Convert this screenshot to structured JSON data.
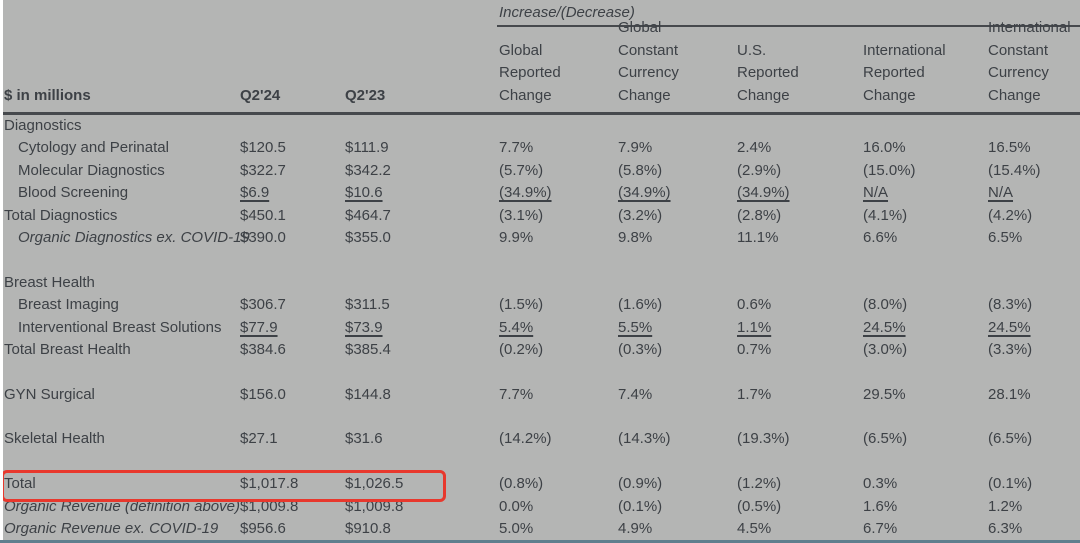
{
  "colors": {
    "background": "#b4b5b4",
    "text": "#3d4146",
    "rule_line": "#46494d",
    "highlight_box": "#e8382d",
    "bottom_bar": "#5f7f8e",
    "left_strip": "#ffffff"
  },
  "table": {
    "increase_decrease_label": "Increase/(Decrease)",
    "unit_label": "$ in millions",
    "col_q224": "Q2'24",
    "col_q223": "Q2'23",
    "change_headers": {
      "global_reported": "Global\nReported\nChange",
      "global_constant_currency": "Global\nConstant\nCurrency\nChange",
      "us_reported": "U.S.\nReported\nChange",
      "intl_reported": "International\nReported\nChange",
      "intl_constant_currency": "International\nConstant\nCurrency\nChange"
    },
    "rows": [
      {
        "type": "section",
        "cells": [
          "Diagnostics",
          "",
          "",
          "",
          "",
          "",
          "",
          ""
        ]
      },
      {
        "type": "item indent",
        "cells": [
          "Cytology and Perinatal",
          "$120.5",
          "$111.9",
          "7.7%",
          "7.9%",
          "2.4%",
          "16.0%",
          "16.5%"
        ]
      },
      {
        "type": "item indent",
        "cells": [
          "Molecular Diagnostics",
          "$322.7",
          "$342.2",
          "(5.7%)",
          "(5.8%)",
          "(2.9%)",
          "(15.0%)",
          "(15.4%)"
        ]
      },
      {
        "type": "item indent underline-values",
        "cells": [
          "Blood Screening",
          "$6.9",
          "$10.6",
          "(34.9%)",
          "(34.9%)",
          "(34.9%)",
          "N/A",
          "N/A"
        ]
      },
      {
        "type": "total",
        "cells": [
          "Total Diagnostics",
          "$450.1",
          "$464.7",
          "(3.1%)",
          "(3.2%)",
          "(2.8%)",
          "(4.1%)",
          "(4.2%)"
        ]
      },
      {
        "type": "item indent italic",
        "cells": [
          "Organic Diagnostics ex. COVID-19",
          "$390.0",
          "$355.0",
          "9.9%",
          "9.8%",
          "11.1%",
          "6.6%",
          "6.5%"
        ]
      },
      {
        "type": "spacer",
        "cells": [
          "",
          "",
          "",
          "",
          "",
          "",
          "",
          ""
        ]
      },
      {
        "type": "section",
        "cells": [
          "Breast Health",
          "",
          "",
          "",
          "",
          "",
          "",
          ""
        ]
      },
      {
        "type": "item indent",
        "cells": [
          "Breast Imaging",
          "$306.7",
          "$311.5",
          "(1.5%)",
          "(1.6%)",
          "0.6%",
          "(8.0%)",
          "(8.3%)"
        ]
      },
      {
        "type": "item indent underline-values",
        "cells": [
          "Interventional Breast Solutions",
          "$77.9",
          "$73.9",
          "5.4%",
          "5.5%",
          "1.1%",
          "24.5%",
          "24.5%"
        ]
      },
      {
        "type": "total",
        "cells": [
          "Total Breast Health",
          "$384.6",
          "$385.4",
          "(0.2%)",
          "(0.3%)",
          "0.7%",
          "(3.0%)",
          "(3.3%)"
        ]
      },
      {
        "type": "spacer",
        "cells": [
          "",
          "",
          "",
          "",
          "",
          "",
          "",
          ""
        ]
      },
      {
        "type": "total",
        "cells": [
          "GYN Surgical",
          "$156.0",
          "$144.8",
          "7.7%",
          "7.4%",
          "1.7%",
          "29.5%",
          "28.1%"
        ]
      },
      {
        "type": "spacer",
        "cells": [
          "",
          "",
          "",
          "",
          "",
          "",
          "",
          ""
        ]
      },
      {
        "type": "total",
        "cells": [
          "Skeletal Health",
          "$27.1",
          "$31.6",
          "(14.2%)",
          "(14.3%)",
          "(19.3%)",
          "(6.5%)",
          "(6.5%)"
        ]
      },
      {
        "type": "spacer",
        "cells": [
          "",
          "",
          "",
          "",
          "",
          "",
          "",
          ""
        ]
      },
      {
        "type": "total highlighted",
        "cells": [
          "Total",
          "$1,017.8",
          "$1,026.5",
          "(0.8%)",
          "(0.9%)",
          "(1.2%)",
          "0.3%",
          "(0.1%)"
        ]
      },
      {
        "type": "item italic",
        "cells": [
          "Organic Revenue (definition above)",
          "$1,009.8",
          "$1,009.8",
          "0.0%",
          "(0.1%)",
          "(0.5%)",
          "1.6%",
          "1.2%"
        ]
      },
      {
        "type": "item italic",
        "cells": [
          "Organic Revenue ex. COVID-19",
          "$956.6",
          "$910.8",
          "5.0%",
          "4.9%",
          "4.5%",
          "6.7%",
          "6.3%"
        ]
      }
    ]
  }
}
